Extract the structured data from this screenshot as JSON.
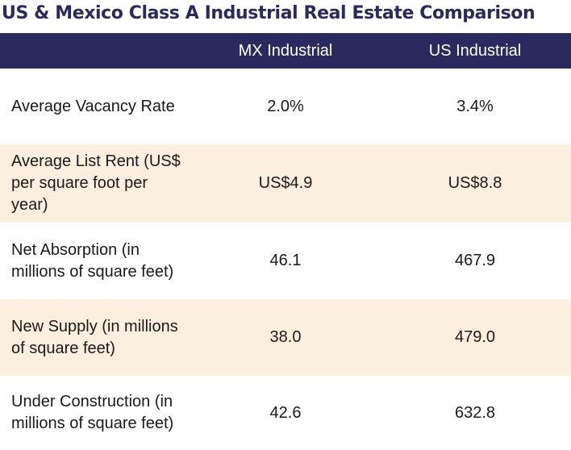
{
  "title": "US & Mexico Class A Industrial Real Estate Comparison",
  "table": {
    "headers": [
      "",
      "MX Industrial",
      "US Industrial"
    ],
    "rows": [
      {
        "label": "Average Vacancy Rate",
        "mx": "2.0%",
        "us": "3.4%"
      },
      {
        "label": "Average List Rent (US$ per square foot per year)",
        "mx": "US$4.9",
        "us": "US$8.8"
      },
      {
        "label": "Net Absorption (in millions of square feet)",
        "mx": "46.1",
        "us": "467.9"
      },
      {
        "label": "New Supply (in millions of square feet)",
        "mx": "38.0",
        "us": "479.0"
      },
      {
        "label": "Under Construction (in millions of square feet)",
        "mx": "42.6",
        "us": "632.8"
      }
    ]
  },
  "colors": {
    "header_bg": "#2b2a5e",
    "title_text": "#2b2a5e",
    "shaded_row": "#fbf0e0"
  }
}
